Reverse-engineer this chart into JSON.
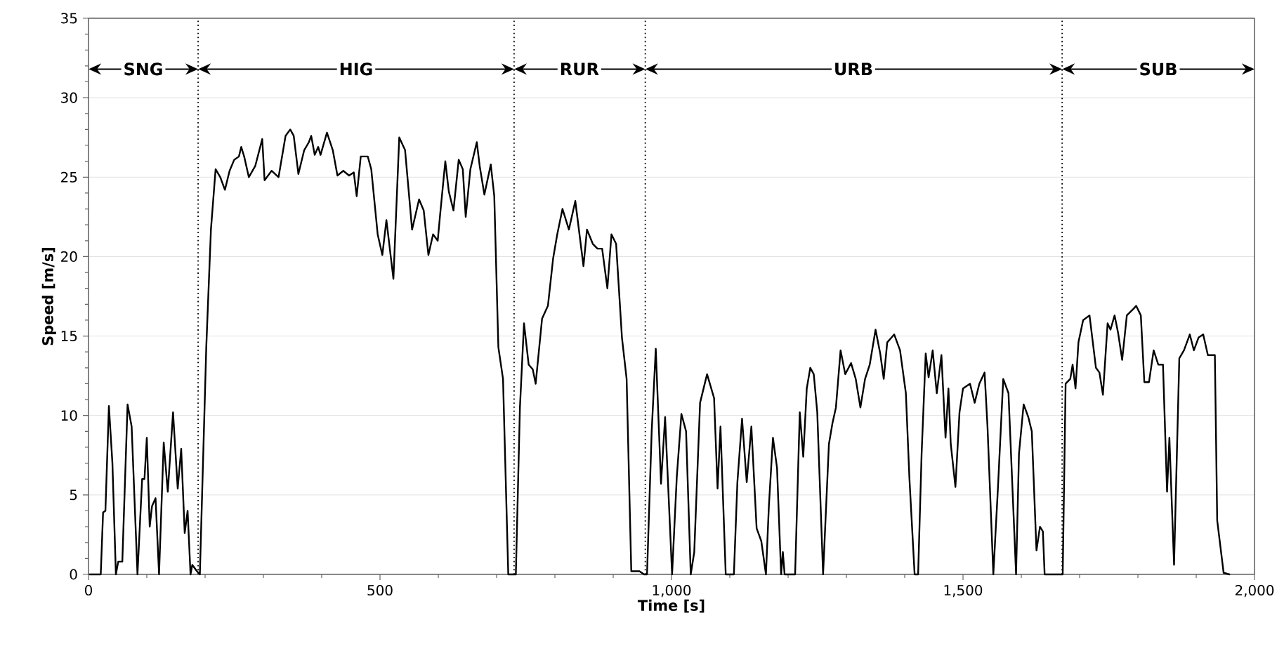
{
  "chart_data": {
    "type": "line",
    "xlabel": "Time [s]",
    "ylabel": "Speed [m/s]",
    "color": "#000000",
    "line_style": "solid",
    "grid": "y",
    "xlim": [
      0,
      2000
    ],
    "ylim": [
      0,
      35
    ],
    "xticks": [
      0,
      500,
      {
        "value": 1000,
        "label": "1,000"
      },
      {
        "value": 1500,
        "label": "1,500"
      },
      {
        "value": 2000,
        "label": "2,000"
      }
    ],
    "yticks": [
      0,
      5,
      10,
      15,
      20,
      25,
      30,
      35
    ],
    "ref_lines": [
      {
        "axis": "x",
        "value": 188,
        "color": "#000000",
        "line_style": "dotted"
      },
      {
        "axis": "x",
        "value": 730,
        "color": "#000000",
        "line_style": "dotted"
      },
      {
        "axis": "x",
        "value": 955,
        "color": "#000000",
        "line_style": "dotted"
      },
      {
        "axis": "x",
        "value": 1670,
        "color": "#000000",
        "line_style": "dotted"
      }
    ],
    "annotations": [
      {
        "text": "SNG",
        "x": 94,
        "y": 31.8
      },
      {
        "text": "HIG",
        "x": 459,
        "y": 31.8
      },
      {
        "text": "RUR",
        "x": 842,
        "y": 31.8
      },
      {
        "text": "URB",
        "x": 1312,
        "y": 31.8
      },
      {
        "text": "SUB",
        "x": 1835,
        "y": 31.8
      }
    ],
    "x": [
      2,
      21,
      25,
      29,
      35,
      41,
      47,
      51,
      58,
      67,
      74,
      84,
      92,
      96,
      100,
      105,
      109,
      115,
      121,
      129,
      136,
      145,
      153,
      159,
      165,
      170,
      175,
      178,
      186,
      191,
      202,
      210,
      218,
      226,
      234,
      242,
      250,
      258,
      262,
      267,
      275,
      286,
      298,
      302,
      314,
      326,
      338,
      346,
      352,
      360,
      370,
      378,
      382,
      388,
      394,
      398,
      409,
      419,
      427,
      437,
      447,
      455,
      460,
      467,
      479,
      485,
      496,
      504,
      511,
      523,
      533,
      543,
      555,
      567,
      575,
      583,
      591,
      599,
      603,
      612,
      618,
      626,
      635,
      642,
      647,
      655,
      666,
      671,
      679,
      690,
      696,
      703,
      711,
      720,
      733,
      740,
      747,
      755,
      762,
      767,
      778,
      788,
      797,
      804,
      813,
      824,
      835,
      849,
      855,
      865,
      873,
      881,
      890,
      897,
      905,
      915,
      923,
      931,
      945,
      953,
      958,
      966,
      973,
      982,
      989,
      1001,
      1009,
      1017,
      1025,
      1033,
      1039,
      1049,
      1061,
      1073,
      1079,
      1084,
      1093,
      1107,
      1113,
      1121,
      1129,
      1137,
      1146,
      1154,
      1162,
      1167,
      1174,
      1181,
      1188,
      1191,
      1194,
      1212,
      1220,
      1226,
      1232,
      1238,
      1244,
      1250,
      1260,
      1270,
      1276,
      1282,
      1290,
      1298,
      1308,
      1316,
      1324,
      1332,
      1340,
      1350,
      1358,
      1364,
      1370,
      1382,
      1392,
      1402,
      1408,
      1417,
      1423,
      1429,
      1436,
      1441,
      1448,
      1455,
      1463,
      1470,
      1475,
      1479,
      1487,
      1494,
      1500,
      1512,
      1520,
      1528,
      1537,
      1542,
      1552,
      1560,
      1569,
      1578,
      1591,
      1596,
      1604,
      1612,
      1618,
      1626,
      1632,
      1637,
      1640,
      1671,
      1676,
      1684,
      1688,
      1693,
      1698,
      1706,
      1717,
      1728,
      1734,
      1740,
      1748,
      1753,
      1760,
      1766,
      1773,
      1781,
      1792,
      1797,
      1805,
      1811,
      1819,
      1827,
      1835,
      1843,
      1850,
      1854,
      1862,
      1871,
      1879,
      1889,
      1896,
      1904,
      1912,
      1920,
      1932,
      1936,
      1947,
      1957
    ],
    "values": [
      0,
      0,
      3.9,
      4.0,
      10.6,
      7.0,
      0,
      0.8,
      0.8,
      10.7,
      9.3,
      0,
      6.0,
      6.0,
      8.6,
      3.0,
      4.3,
      4.8,
      0,
      8.3,
      5.2,
      10.2,
      5.4,
      7.9,
      2.6,
      4.0,
      0,
      0.6,
      0.2,
      0,
      14.3,
      21.7,
      25.5,
      25.0,
      24.2,
      25.4,
      26.1,
      26.3,
      26.9,
      26.3,
      25.0,
      25.7,
      27.4,
      24.8,
      25.4,
      25.0,
      27.6,
      28.0,
      27.6,
      25.2,
      26.7,
      27.2,
      27.6,
      26.4,
      26.9,
      26.4,
      27.8,
      26.7,
      25.1,
      25.4,
      25.1,
      25.3,
      23.8,
      26.3,
      26.3,
      25.5,
      21.4,
      20.1,
      22.3,
      18.6,
      27.5,
      26.7,
      21.7,
      23.6,
      22.9,
      20.1,
      21.4,
      21.0,
      22.6,
      26.0,
      24.1,
      22.9,
      26.1,
      25.5,
      22.5,
      25.5,
      27.2,
      25.7,
      23.9,
      25.8,
      23.8,
      14.3,
      12.3,
      0,
      0,
      10.5,
      15.8,
      13.2,
      12.9,
      12.0,
      16.1,
      16.9,
      19.9,
      21.4,
      23.0,
      21.7,
      23.5,
      19.4,
      21.7,
      20.8,
      20.5,
      20.5,
      18.0,
      21.4,
      20.8,
      14.9,
      12.3,
      0.2,
      0.2,
      0,
      0,
      9.0,
      14.2,
      5.7,
      9.9,
      0,
      6.1,
      10.1,
      9.0,
      0,
      1.4,
      10.8,
      12.6,
      11.1,
      5.4,
      9.3,
      0,
      0,
      5.8,
      9.8,
      5.8,
      9.3,
      2.9,
      2.1,
      0,
      4.3,
      8.6,
      6.7,
      0,
      1.4,
      0,
      0,
      10.2,
      7.4,
      11.7,
      13.0,
      12.6,
      10.2,
      0,
      8.2,
      9.5,
      10.5,
      14.1,
      12.6,
      13.3,
      12.3,
      10.5,
      12.3,
      13.2,
      15.4,
      13.9,
      12.3,
      14.6,
      15.1,
      14.1,
      11.4,
      6.1,
      0,
      0,
      7.6,
      13.9,
      12.4,
      14.1,
      11.4,
      13.8,
      8.6,
      11.7,
      8.2,
      5.5,
      10.2,
      11.7,
      12.0,
      10.8,
      12.0,
      12.7,
      9.3,
      0,
      5.5,
      12.3,
      11.4,
      0,
      7.6,
      10.7,
      9.9,
      9.0,
      1.5,
      3.0,
      2.7,
      0,
      0,
      12.0,
      12.3,
      13.2,
      11.7,
      14.6,
      16.0,
      16.3,
      13.0,
      12.7,
      11.3,
      15.8,
      15.4,
      16.3,
      15.2,
      13.5,
      16.3,
      16.7,
      16.9,
      16.3,
      12.1,
      12.1,
      14.1,
      13.2,
      13.2,
      5.2,
      8.6,
      0.6,
      13.6,
      14.1,
      15.1,
      14.1,
      14.9,
      15.1,
      13.8,
      13.8,
      3.4,
      0.1,
      0
    ]
  }
}
